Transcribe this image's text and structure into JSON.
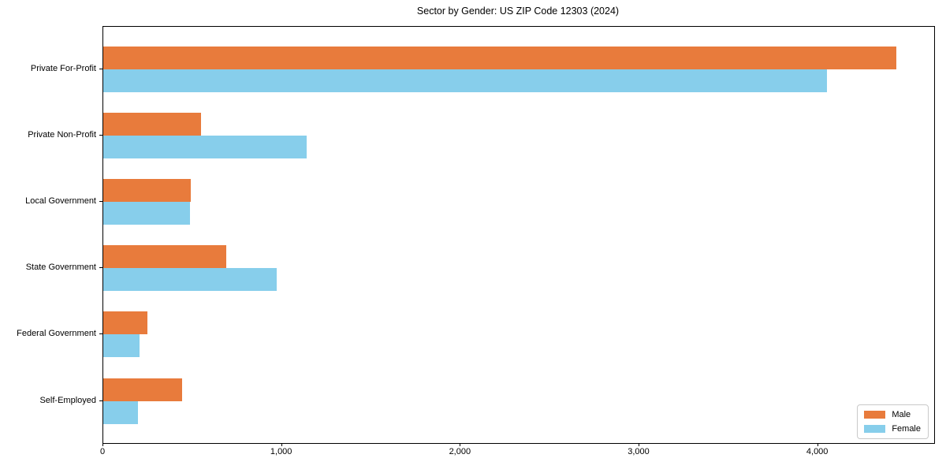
{
  "chart": {
    "title": "Sector by Gender: US ZIP Code 12303 (2024)"
  },
  "chart_data": {
    "type": "bar",
    "orientation": "horizontal",
    "title": "Sector by Gender: US ZIP Code 12303 (2024)",
    "xlabel": "",
    "ylabel": "",
    "categories": [
      "Private For-Profit",
      "Private Non-Profit",
      "Local Government",
      "State Government",
      "Federal Government",
      "Self-Employed"
    ],
    "series": [
      {
        "name": "Male",
        "color": "#e87b3c",
        "values": [
          4440,
          545,
          490,
          690,
          245,
          440
        ]
      },
      {
        "name": "Female",
        "color": "#87ceeb",
        "values": [
          4050,
          1140,
          485,
          970,
          205,
          195
        ]
      }
    ],
    "xlim": [
      0,
      4650
    ],
    "xticks": [
      0,
      1000,
      2000,
      3000,
      4000
    ],
    "xtick_labels": [
      "0",
      "1,000",
      "2,000",
      "3,000",
      "4,000"
    ],
    "grid": false,
    "legend_position": "lower right"
  }
}
